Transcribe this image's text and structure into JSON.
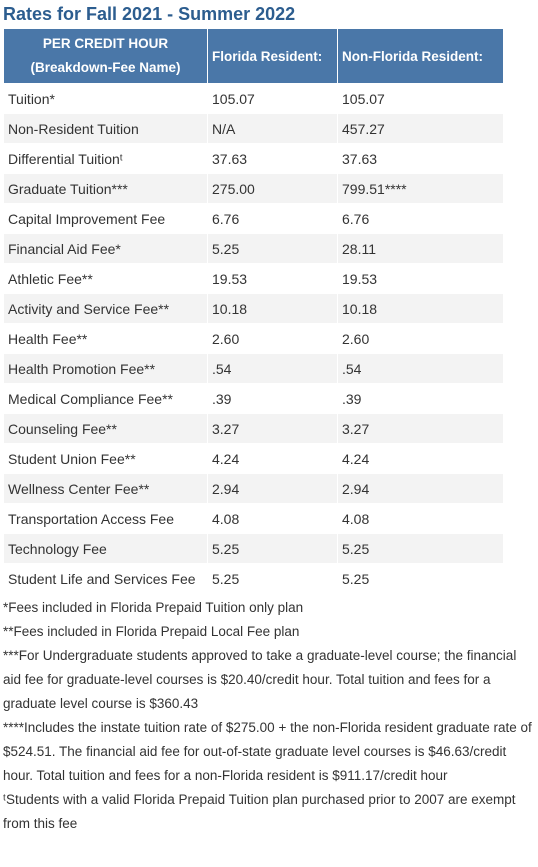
{
  "title": "Rates for Fall 2021 - Summer 2022",
  "table": {
    "header": [
      [
        "PER CREDIT HOUR",
        "(Breakdown-Fee Name)"
      ],
      [
        "Florida Resident:"
      ],
      [
        "Non-Florida Resident:"
      ]
    ],
    "rows": [
      [
        "Tuition*",
        "105.07",
        "105.07"
      ],
      [
        "Non-Resident Tuition",
        "N/A",
        "457.27"
      ],
      [
        "Differential Tuitionᵗ",
        "37.63",
        "37.63"
      ],
      [
        "Graduate Tuition***",
        "275.00",
        "799.51****"
      ],
      [
        "Capital Improvement Fee",
        "6.76",
        "6.76"
      ],
      [
        "Financial Aid Fee*",
        "5.25",
        "28.11"
      ],
      [
        "Athletic Fee**",
        "19.53",
        "19.53"
      ],
      [
        "Activity and Service Fee**",
        "10.18",
        "10.18"
      ],
      [
        "Health Fee**",
        "2.60",
        "2.60"
      ],
      [
        "Health Promotion Fee**",
        ".54",
        ".54"
      ],
      [
        "Medical Compliance Fee**",
        ".39",
        ".39"
      ],
      [
        "Counseling Fee**",
        "3.27",
        "3.27"
      ],
      [
        "Student Union Fee**",
        "4.24",
        "4.24"
      ],
      [
        "Wellness Center Fee**",
        "2.94",
        "2.94"
      ],
      [
        "Transportation Access Fee",
        "4.08",
        "4.08"
      ],
      [
        "Technology Fee",
        "5.25",
        "5.25"
      ],
      [
        "Student Life and Services Fee",
        "5.25",
        "5.25"
      ]
    ]
  },
  "notes": [
    "*Fees included in Florida Prepaid Tuition only plan",
    "**Fees included in Florida Prepaid Local Fee plan",
    "***For Undergraduate students approved to take a graduate-level course; the financial aid fee for graduate-level courses is $20.40/credit hour. Total tuition and fees for a graduate level course is $360.43",
    "****Includes the instate tuition rate of $275.00 + the non-Florida resident graduate rate of $524.51. The financial aid fee for out-of-state graduate level courses is $46.63/credit hour. Total tuition and fees for a non-Florida resident is $911.17/credit hour",
    "ᵗStudents with a valid Florida Prepaid Tuition plan purchased prior to 2007 are exempt from this fee"
  ]
}
